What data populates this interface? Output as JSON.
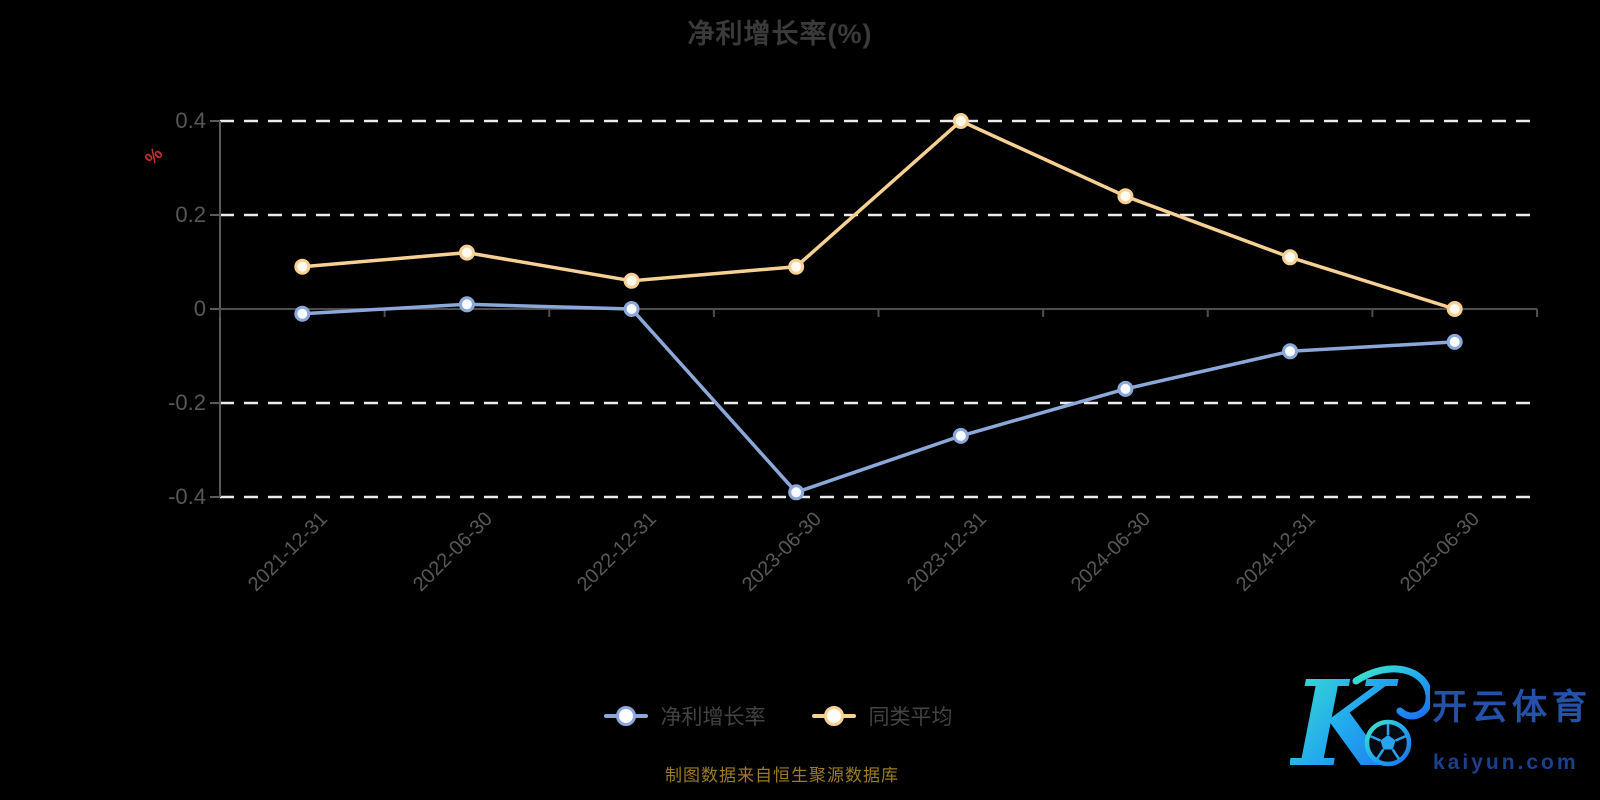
{
  "title": "净利增长率(%)",
  "y_axis": {
    "unit": "%",
    "tick_labels": [
      "0.4",
      "0.2",
      "0",
      "-0.2",
      "-0.4"
    ],
    "tick_values": [
      0.4,
      0.2,
      0,
      -0.2,
      -0.4
    ]
  },
  "legend": {
    "items": [
      {
        "label": "净利增长率",
        "color": "#8ca8da"
      },
      {
        "label": "同类平均",
        "color": "#f6d193"
      }
    ]
  },
  "caption": "制图数据来自恒生聚源数据库",
  "watermark": {
    "brand": "开云体育",
    "domain": "kaiyun.com",
    "monogram": "K"
  },
  "colors": {
    "background": "#000000",
    "grid_dashed": "#ebebeb",
    "axis": "#4e4e4e",
    "title": "#3a3a3a",
    "tick_text": "#585858",
    "unit_red": "#c62f2f",
    "caption_gold": "#9d7b22",
    "series_blue": "#8ca8da",
    "series_orange": "#f6d193"
  },
  "chart_data": {
    "type": "line",
    "title": "净利增长率(%)",
    "categories": [
      "2021-12-31",
      "2022-06-30",
      "2022-12-31",
      "2023-06-30",
      "2023-12-31",
      "2024-06-30",
      "2024-12-31",
      "2025-06-30"
    ],
    "series": [
      {
        "name": "净利增长率",
        "color": "#8ca8da",
        "values": [
          -0.01,
          0.01,
          0.0,
          -0.39,
          -0.27,
          -0.17,
          -0.09,
          -0.07
        ]
      },
      {
        "name": "同类平均",
        "color": "#f6d193",
        "values": [
          0.09,
          0.12,
          0.06,
          0.09,
          0.4,
          0.24,
          0.11,
          0.0
        ]
      }
    ],
    "xlabel": "",
    "ylabel": "%",
    "ylim": [
      -0.4,
      0.4
    ],
    "yticks": [
      0.4,
      0.2,
      0,
      -0.2,
      -0.4
    ],
    "grid": "horizontal-dashed-white, solid-line-at-zero",
    "legend_position": "bottom-center",
    "x_label_rotation": 45,
    "marker": "circle, white fill, colored ring"
  }
}
